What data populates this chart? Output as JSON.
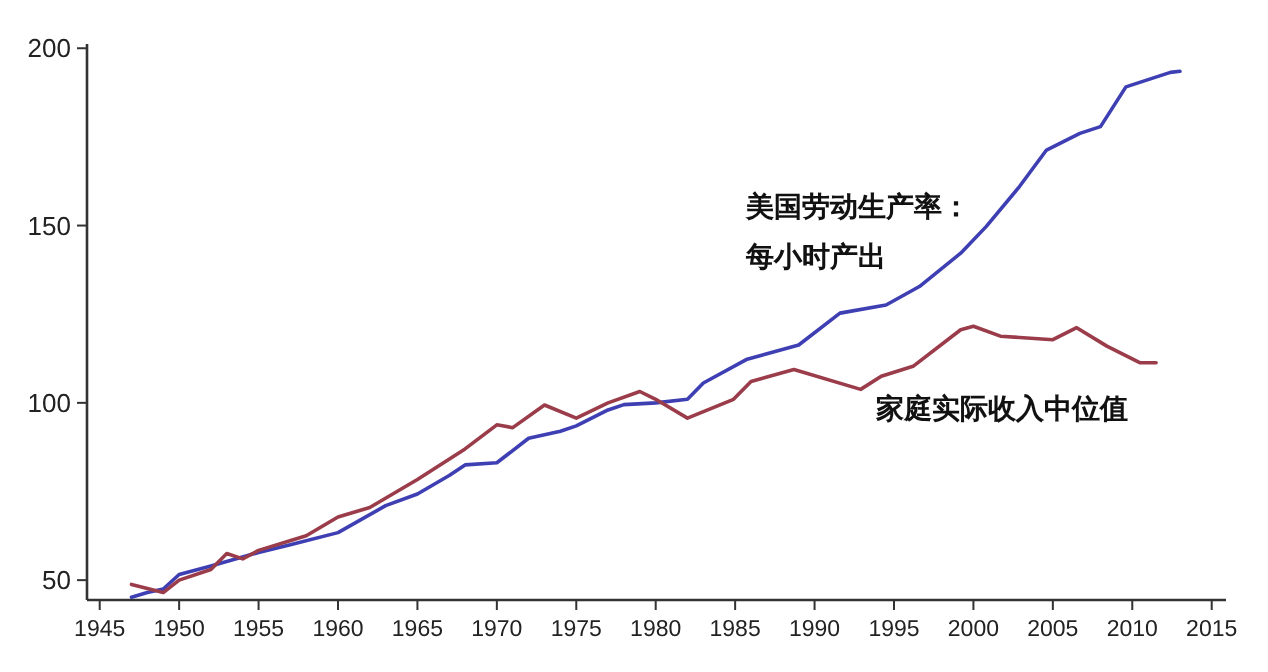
{
  "chart_data": {
    "type": "line",
    "xlim": [
      1944.2,
      2015.9
    ],
    "ylim": [
      44.4,
      201.2
    ],
    "xticks": [
      1945,
      1950,
      1955,
      1960,
      1965,
      1970,
      1975,
      1980,
      1985,
      1990,
      1995,
      2000,
      2005,
      2010,
      2015
    ],
    "yticks": [
      50,
      100,
      150,
      200
    ],
    "grid": false,
    "legend": false,
    "series": [
      {
        "name": "美国劳动生产率：每小时产出",
        "color": "#3f3fb4",
        "x": [
          1947,
          1948,
          1949,
          1950,
          1952,
          1955,
          1957,
          1960,
          1963,
          1965,
          1967,
          1968,
          1970,
          1972,
          1974,
          1975,
          1977,
          1978,
          1980,
          1982,
          1983,
          1985.7,
          1989,
          1991.6,
          1994.5,
          1996.6,
          1999.2,
          2000.8,
          2002.9,
          2004.6,
          2006.7,
          2008,
          2009.6,
          2012.4,
          2013
        ],
        "values": [
          45.2,
          46.5,
          47.5,
          51.6,
          54,
          57.8,
          60,
          63.4,
          71,
          74.3,
          79.5,
          82.5,
          83.1,
          90,
          92,
          93.5,
          98,
          99.5,
          100,
          101,
          105.6,
          112.2,
          116.3,
          125.3,
          127.6,
          132.8,
          142.2,
          149.7,
          161,
          171.3,
          176,
          177.9,
          189.1,
          193.2,
          193.5
        ]
      },
      {
        "name": "家庭实际收入中位值",
        "color": "#9b3c4a",
        "x": [
          1947,
          1949,
          1950,
          1952,
          1953,
          1954,
          1955,
          1958,
          1960,
          1962,
          1965,
          1968,
          1970,
          1971,
          1973,
          1975,
          1977,
          1979,
          1980,
          1982,
          1984.9,
          1986,
          1988.7,
          1992.9,
          1994.2,
          1996.2,
          1999.2,
          2000,
          2001.7,
          2005,
          2006.5,
          2008.4,
          2010.5,
          2011.5
        ],
        "values": [
          48.8,
          46.5,
          50,
          53,
          57.5,
          56,
          58.4,
          62.5,
          67.8,
          70.5,
          78.4,
          87,
          93.8,
          93,
          99.4,
          95.7,
          100,
          103.2,
          101,
          95.7,
          101,
          106,
          109.4,
          103.8,
          107.5,
          110.3,
          120.6,
          121.6,
          118.8,
          117.8,
          121.2,
          116,
          111.3,
          111.3
        ]
      }
    ]
  }
}
